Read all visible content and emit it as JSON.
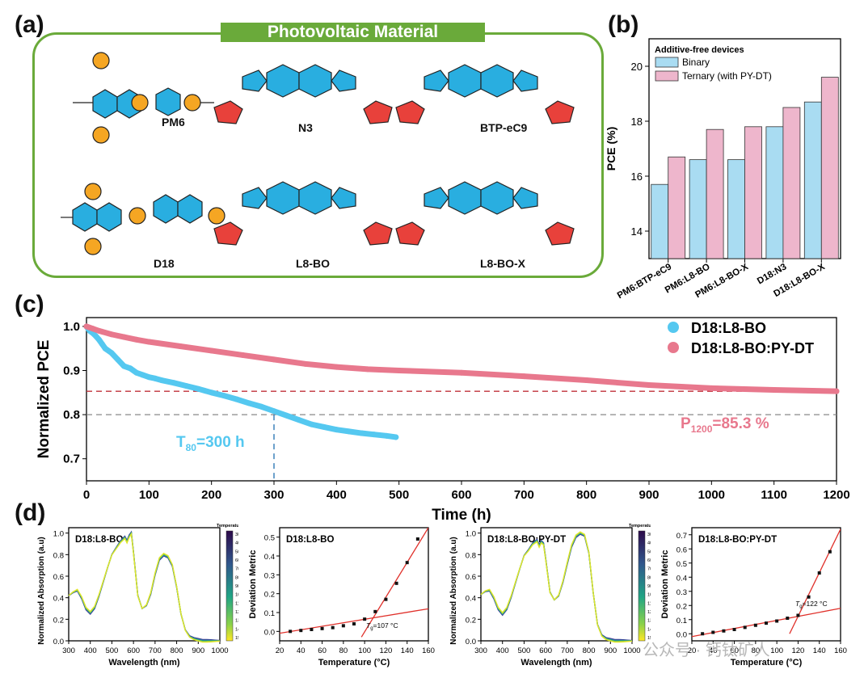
{
  "panels": {
    "a": "(a)",
    "b": "(b)",
    "c": "(c)",
    "d": "(d)"
  },
  "panel_a": {
    "title": "Photovoltaic Material",
    "molecules": [
      "PM6",
      "N3",
      "BTP-eC9",
      "D18",
      "L8-BO",
      "L8-BO-X"
    ],
    "colors": {
      "border": "#6aaa3a",
      "donor_orange": "#f5a623",
      "acceptor_blue": "#29aee0",
      "end_red": "#e8413b"
    }
  },
  "watermark": "公众号 · 钙钛矿人",
  "colors": {
    "binary": "#a9dcf2",
    "ternary": "#eeb6cc",
    "d18_l8bo": "#55c8f0",
    "ternary_line": "#e8788d",
    "fit_red": "#e0302a"
  },
  "chart_data": [
    {
      "id": "b",
      "type": "bar",
      "title": "Additive-free devices",
      "xlabel": "",
      "ylabel": "PCE (%)",
      "ylim": [
        13,
        21
      ],
      "yticks": [
        14,
        16,
        18,
        20
      ],
      "categories": [
        "PM6:BTP-eC9",
        "PM6:L8-BO",
        "PM6:L8-BO-X",
        "D18:N3",
        "D18:L8-BO-X"
      ],
      "series": [
        {
          "name": "Binary",
          "values": [
            15.7,
            16.6,
            16.6,
            17.8,
            18.7
          ]
        },
        {
          "name": "Ternary (with PY-DT)",
          "values": [
            16.7,
            17.7,
            17.8,
            18.5,
            19.6
          ]
        }
      ],
      "legend": "top-left"
    },
    {
      "id": "c",
      "type": "scatter",
      "xlabel": "Time (h)",
      "ylabel": "Normalized PCE",
      "xlim": [
        0,
        1200
      ],
      "ylim": [
        0.65,
        1.02
      ],
      "xticks": [
        0,
        100,
        200,
        300,
        400,
        500,
        600,
        700,
        800,
        900,
        1000,
        1100,
        1200
      ],
      "yticks": [
        0.7,
        0.8,
        0.9,
        1.0
      ],
      "series": [
        {
          "name": "D18:L8-BO",
          "x": [
            0,
            5,
            10,
            15,
            20,
            25,
            30,
            40,
            50,
            60,
            70,
            80,
            90,
            100,
            110,
            120,
            140,
            160,
            180,
            200,
            220,
            240,
            260,
            280,
            300,
            320,
            340,
            360,
            380,
            400,
            420,
            440,
            460,
            480,
            495
          ],
          "y": [
            1.0,
            0.99,
            0.985,
            0.978,
            0.97,
            0.96,
            0.95,
            0.94,
            0.925,
            0.91,
            0.905,
            0.895,
            0.89,
            0.885,
            0.882,
            0.878,
            0.872,
            0.865,
            0.858,
            0.85,
            0.843,
            0.835,
            0.826,
            0.818,
            0.808,
            0.798,
            0.788,
            0.778,
            0.772,
            0.766,
            0.762,
            0.758,
            0.755,
            0.752,
            0.749
          ]
        },
        {
          "name": "D18:L8-BO:PY-DT",
          "x": [
            0,
            10,
            20,
            40,
            60,
            80,
            100,
            150,
            200,
            250,
            300,
            350,
            400,
            450,
            500,
            600,
            700,
            800,
            900,
            1000,
            1100,
            1200
          ],
          "y": [
            1.0,
            0.995,
            0.99,
            0.982,
            0.976,
            0.97,
            0.965,
            0.955,
            0.945,
            0.935,
            0.925,
            0.915,
            0.908,
            0.903,
            0.9,
            0.895,
            0.887,
            0.878,
            0.867,
            0.86,
            0.856,
            0.853
          ]
        }
      ],
      "reference_lines": [
        {
          "y": 0.853,
          "color": "#c0303a"
        },
        {
          "y": 0.8,
          "color": "#888888"
        }
      ],
      "vline": {
        "x": 300
      },
      "annotations": {
        "t80_prefix": "T",
        "t80_sub": "80",
        "t80_value": "=300 h",
        "p_prefix": "P",
        "p_sub": "1200",
        "p_value": "=85.3 %"
      },
      "legend": "top-right"
    },
    {
      "id": "d1",
      "type": "line",
      "title": "D18:L8-BO",
      "xlabel": "Wavelength (nm)",
      "ylabel": "Normalized Absorption (a.u)",
      "xlim": [
        300,
        1000
      ],
      "ylim": [
        0,
        1.05
      ],
      "xticks": [
        300,
        400,
        500,
        600,
        700,
        800,
        900,
        1000
      ],
      "yticks": [
        0.0,
        0.2,
        0.4,
        0.6,
        0.8,
        1.0
      ],
      "x": [
        300,
        320,
        340,
        360,
        380,
        400,
        420,
        440,
        460,
        480,
        500,
        520,
        540,
        560,
        570,
        580,
        590,
        600,
        620,
        640,
        660,
        680,
        700,
        720,
        740,
        760,
        780,
        800,
        820,
        840,
        860,
        880,
        900,
        920,
        940,
        960,
        980,
        1000
      ],
      "y": [
        0.42,
        0.45,
        0.47,
        0.4,
        0.3,
        0.26,
        0.31,
        0.42,
        0.55,
        0.68,
        0.8,
        0.86,
        0.92,
        0.96,
        0.92,
        0.97,
        1.0,
        0.82,
        0.42,
        0.3,
        0.33,
        0.44,
        0.62,
        0.76,
        0.8,
        0.78,
        0.7,
        0.5,
        0.25,
        0.1,
        0.04,
        0.02,
        0.01,
        0.0,
        0.0,
        0.0,
        0.0,
        0.0
      ],
      "colorbar": {
        "label": "Temperature (°C)",
        "ticks": [
          30,
          40,
          50,
          60,
          70,
          80,
          90,
          100,
          110,
          120,
          130,
          140,
          150
        ]
      }
    },
    {
      "id": "d2",
      "type": "scatter",
      "title": "D18:L8-BO",
      "xlabel": "Temperature (°C)",
      "ylabel": "Deviation Metric",
      "xlim": [
        20,
        160
      ],
      "ylim": [
        -0.05,
        0.55
      ],
      "xticks": [
        20,
        40,
        60,
        80,
        100,
        120,
        140,
        160
      ],
      "yticks": [
        0.0,
        0.1,
        0.2,
        0.3,
        0.4,
        0.5
      ],
      "x": [
        30,
        40,
        50,
        60,
        70,
        80,
        90,
        100,
        110,
        120,
        130,
        140,
        150
      ],
      "y": [
        0.0,
        0.005,
        0.01,
        0.015,
        0.02,
        0.03,
        0.04,
        0.065,
        0.105,
        0.17,
        0.255,
        0.365,
        0.49
      ],
      "fits": [
        {
          "x": [
            20,
            160
          ],
          "y": [
            -0.01,
            0.12
          ]
        },
        {
          "x": [
            97,
            160
          ],
          "y": [
            -0.03,
            0.55
          ]
        }
      ],
      "annotation": {
        "prefix": "T",
        "sub": "g",
        "value": "=107 °C"
      }
    },
    {
      "id": "d3",
      "type": "line",
      "title": "D18:L8-BO:PY-DT",
      "xlabel": "Wavelength (nm)",
      "ylabel": "Normalized Absorption (a.u)",
      "xlim": [
        300,
        1000
      ],
      "ylim": [
        0,
        1.05
      ],
      "xticks": [
        300,
        400,
        500,
        600,
        700,
        800,
        900,
        1000
      ],
      "yticks": [
        0.0,
        0.2,
        0.4,
        0.6,
        0.8,
        1.0
      ],
      "x": [
        300,
        320,
        340,
        360,
        380,
        400,
        420,
        440,
        460,
        480,
        500,
        520,
        540,
        560,
        570,
        580,
        590,
        600,
        620,
        640,
        660,
        680,
        700,
        720,
        740,
        760,
        780,
        800,
        820,
        840,
        860,
        880,
        900,
        920,
        940,
        960,
        980,
        1000
      ],
      "y": [
        0.43,
        0.46,
        0.47,
        0.4,
        0.3,
        0.25,
        0.3,
        0.41,
        0.54,
        0.67,
        0.79,
        0.84,
        0.9,
        0.93,
        0.88,
        0.92,
        0.9,
        0.76,
        0.45,
        0.38,
        0.42,
        0.55,
        0.72,
        0.88,
        0.97,
        1.0,
        0.98,
        0.82,
        0.45,
        0.15,
        0.05,
        0.02,
        0.01,
        0.0,
        0.0,
        0.0,
        0.0,
        0.0
      ],
      "colorbar": {
        "label": "Temperature (°C)",
        "ticks": [
          30,
          40,
          50,
          60,
          70,
          80,
          90,
          100,
          110,
          120,
          130,
          140,
          150
        ]
      }
    },
    {
      "id": "d4",
      "type": "scatter",
      "title": "D18:L8-BO:PY-DT",
      "xlabel": "Temperature (°C)",
      "ylabel": "Deviation Metric",
      "xlim": [
        20,
        160
      ],
      "ylim": [
        -0.05,
        0.75
      ],
      "xticks": [
        20,
        40,
        60,
        80,
        100,
        120,
        140,
        160
      ],
      "yticks": [
        0.0,
        0.1,
        0.2,
        0.3,
        0.4,
        0.5,
        0.6,
        0.7
      ],
      "x": [
        30,
        40,
        50,
        60,
        70,
        80,
        90,
        100,
        110,
        120,
        130,
        140,
        150
      ],
      "y": [
        0.0,
        0.01,
        0.02,
        0.03,
        0.045,
        0.06,
        0.075,
        0.09,
        0.11,
        0.13,
        0.26,
        0.43,
        0.58
      ],
      "fits": [
        {
          "x": [
            20,
            160
          ],
          "y": [
            -0.02,
            0.18
          ]
        },
        {
          "x": [
            112,
            160
          ],
          "y": [
            0.0,
            0.74
          ]
        }
      ],
      "annotation": {
        "prefix": "T",
        "sub": "g",
        "value": "=122 °C"
      }
    }
  ]
}
